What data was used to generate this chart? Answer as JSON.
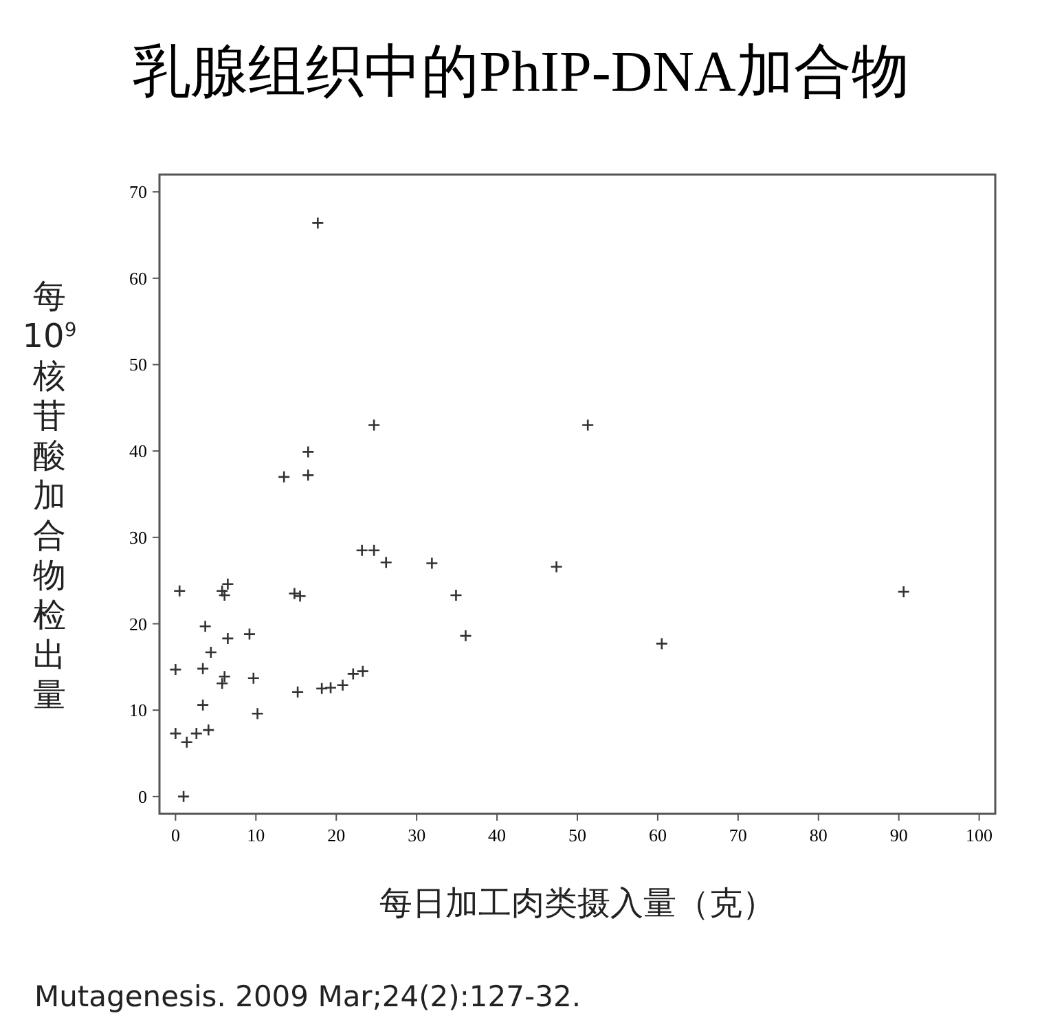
{
  "chart_data": {
    "type": "scatter",
    "title": "乳腺组织中的PhIP-DNA加合物",
    "xlabel": "每日加工肉类摄入量（克）",
    "ylabel": "每10$^{9}$核苷酸加合物检出量",
    "annotations": [
      "Mutagenesis. 2009 Mar;24(2):127-32."
    ],
    "marker": "cross",
    "grid": false,
    "xlim": [
      -2,
      102
    ],
    "ylim": [
      -2,
      72
    ],
    "xticks": [
      0,
      10,
      20,
      30,
      40,
      50,
      60,
      70,
      80,
      90,
      100
    ],
    "yticks": [
      0,
      10,
      20,
      30,
      40,
      50,
      60,
      70
    ],
    "series": [
      {
        "color": "#333333",
        "x": [
          17.7,
          24.7,
          51.3,
          13.5,
          16.5,
          16.5,
          23.2,
          24.7,
          26.2,
          31.9,
          34.9,
          36.1,
          47.4,
          60.5,
          90.6,
          0.5,
          0,
          0,
          1.4,
          1.0,
          2.6,
          3.4,
          3.7,
          3.4,
          4.4,
          4.1,
          5.8,
          6.1,
          6.5,
          6.5,
          5.8,
          6.1,
          9.2,
          9.7,
          10.2,
          14.8,
          15.5,
          15.2,
          18.2,
          19.3,
          20.8,
          22.1,
          23.3
        ],
        "values": [
          66.4,
          43.0,
          43.0,
          37.0,
          39.9,
          37.2,
          28.5,
          28.5,
          27.1,
          27.0,
          23.3,
          18.6,
          26.6,
          17.7,
          23.7,
          23.8,
          14.7,
          7.3,
          6.3,
          0.0,
          7.3,
          10.6,
          19.7,
          14.8,
          16.7,
          7.7,
          23.8,
          23.3,
          24.6,
          18.3,
          13.1,
          13.9,
          18.8,
          13.7,
          9.6,
          23.5,
          23.2,
          12.1,
          12.5,
          12.6,
          12.9,
          14.2,
          14.5
        ]
      }
    ]
  }
}
